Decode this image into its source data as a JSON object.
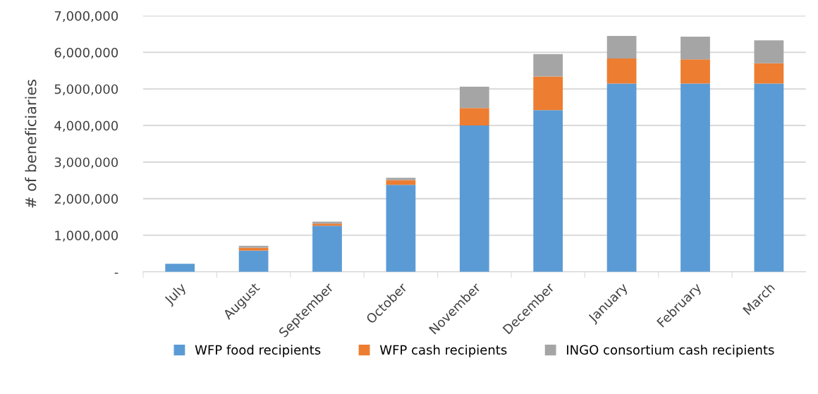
{
  "chart_data": {
    "type": "bar",
    "stacked": true,
    "ylabel": "# of beneficiaries",
    "categories": [
      "July",
      "August",
      "September",
      "October",
      "November",
      "December",
      "January",
      "February",
      "March"
    ],
    "series": [
      {
        "name": "WFP food recipients",
        "color": "#5b9bd5",
        "values": [
          220000,
          580000,
          1260000,
          2380000,
          4000000,
          4420000,
          5150000,
          5150000,
          5150000
        ]
      },
      {
        "name": "WFP cash recipients",
        "color": "#ed7d31",
        "values": [
          0,
          80000,
          60000,
          130000,
          480000,
          920000,
          680000,
          660000,
          550000
        ]
      },
      {
        "name": "INGO consortium cash recipients",
        "color": "#a5a5a5",
        "values": [
          0,
          50000,
          50000,
          60000,
          580000,
          610000,
          620000,
          620000,
          630000
        ]
      }
    ],
    "ylim": [
      0,
      7000000
    ],
    "yticks": [
      {
        "value": 0,
        "label": "-"
      },
      {
        "value": 1000000,
        "label": "1,000,000"
      },
      {
        "value": 2000000,
        "label": "2,000,000"
      },
      {
        "value": 3000000,
        "label": "3,000,000"
      },
      {
        "value": 4000000,
        "label": "4,000,000"
      },
      {
        "value": 5000000,
        "label": "5,000,000"
      },
      {
        "value": 6000000,
        "label": "6,000,000"
      },
      {
        "value": 7000000,
        "label": "7,000,000"
      }
    ],
    "grid": "y",
    "legend": "bottom"
  }
}
